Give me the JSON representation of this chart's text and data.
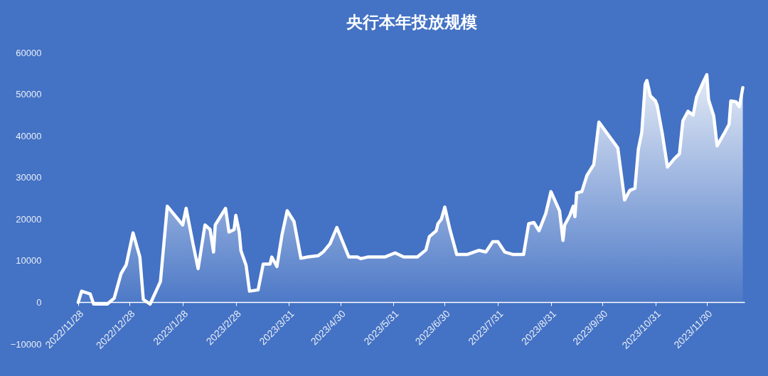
{
  "chart_data": {
    "type": "area",
    "title": "央行本年投放规模",
    "x": [
      "2022-11-28",
      "2022-11-30",
      "2022-12-05",
      "2022-12-07",
      "2022-12-15",
      "2022-12-19",
      "2022-12-23",
      "2022-12-26",
      "2022-12-30",
      "2023-01-03",
      "2023-01-05",
      "2023-01-09",
      "2023-01-13",
      "2023-01-15",
      "2023-01-19",
      "2023-01-28",
      "2023-01-30",
      "2023-02-03",
      "2023-02-06",
      "2023-02-10",
      "2023-02-13",
      "2023-02-15",
      "2023-02-16",
      "2023-02-22",
      "2023-02-24",
      "2023-02-27",
      "2023-02-28",
      "2023-03-02",
      "2023-03-03",
      "2023-03-06",
      "2023-03-08",
      "2023-03-13",
      "2023-03-16",
      "2023-03-20",
      "2023-03-21",
      "2023-03-24",
      "2023-03-27",
      "2023-03-30",
      "2023-04-03",
      "2023-04-07",
      "2023-04-11",
      "2023-04-17",
      "2023-04-20",
      "2023-04-24",
      "2023-04-28",
      "2023-05-05",
      "2023-05-10",
      "2023-05-12",
      "2023-05-16",
      "2023-05-26",
      "2023-06-01",
      "2023-06-06",
      "2023-06-14",
      "2023-06-19",
      "2023-06-21",
      "2023-06-25",
      "2023-06-26",
      "2023-06-28",
      "2023-06-30",
      "2023-07-03",
      "2023-07-07",
      "2023-07-13",
      "2023-07-20",
      "2023-07-24",
      "2023-07-28",
      "2023-07-31",
      "2023-08-04",
      "2023-08-09",
      "2023-08-15",
      "2023-08-18",
      "2023-08-21",
      "2023-08-24",
      "2023-08-28",
      "2023-08-31",
      "2023-09-05",
      "2023-09-07",
      "2023-09-08",
      "2023-09-11",
      "2023-09-13",
      "2023-09-14",
      "2023-09-15",
      "2023-09-18",
      "2023-09-21",
      "2023-09-25",
      "2023-09-28",
      "2023-10-09",
      "2023-10-13",
      "2023-10-16",
      "2023-10-19",
      "2023-10-21",
      "2023-10-23",
      "2023-10-25",
      "2023-10-26",
      "2023-10-28",
      "2023-10-31",
      "2023-11-01",
      "2023-11-04",
      "2023-11-07",
      "2023-11-11",
      "2023-11-14",
      "2023-11-16",
      "2023-11-19",
      "2023-11-22",
      "2023-11-24",
      "2023-11-28",
      "2023-11-30",
      "2023-12-01",
      "2023-12-04",
      "2023-12-06",
      "2023-12-10",
      "2023-12-13",
      "2023-12-14",
      "2023-12-17",
      "2023-12-19",
      "2023-12-21"
    ],
    "series": [
      {
        "color": "#ffffff",
        "values": [
          0,
          2700,
          2000,
          -400,
          -400,
          1000,
          6900,
          9000,
          16700,
          10900,
          700,
          -400,
          3200,
          5000,
          23100,
          18600,
          22600,
          14100,
          8100,
          18600,
          17500,
          12100,
          18600,
          22600,
          16900,
          17500,
          20900,
          16900,
          12400,
          8900,
          2700,
          3000,
          9200,
          9200,
          10900,
          8600,
          16300,
          22000,
          19400,
          10600,
          10900,
          11200,
          12100,
          14100,
          18000,
          10900,
          10900,
          10500,
          10900,
          10900,
          11900,
          10900,
          10900,
          12600,
          15800,
          17200,
          18900,
          20000,
          22900,
          17500,
          11500,
          11500,
          12500,
          12100,
          14600,
          14600,
          12100,
          11500,
          11500,
          18900,
          19200,
          17200,
          21400,
          26600,
          22000,
          14900,
          18600,
          20900,
          23100,
          20600,
          26300,
          26600,
          30500,
          33100,
          43300,
          37100,
          24600,
          26900,
          27400,
          36800,
          40800,
          52400,
          53300,
          49600,
          48400,
          47300,
          40500,
          32500,
          34500,
          35700,
          43600,
          45900,
          45000,
          49300,
          53000,
          54700,
          48700,
          44800,
          37600,
          40500,
          42800,
          48400,
          48200,
          47000,
          51600
        ]
      }
    ],
    "xlim": [
      "2022-11-28",
      "2023-12-22"
    ],
    "xticks": [
      {
        "value": "2022-11-28",
        "label": "2022/11/28"
      },
      {
        "value": "2022-12-28",
        "label": "2022/12/28"
      },
      {
        "value": "2023-01-28",
        "label": "2023/1/28"
      },
      {
        "value": "2023-02-28",
        "label": "2023/2/28"
      },
      {
        "value": "2023-03-31",
        "label": "2023/3/31"
      },
      {
        "value": "2023-04-30",
        "label": "2023/4/30"
      },
      {
        "value": "2023-05-31",
        "label": "2023/5/31"
      },
      {
        "value": "2023-06-30",
        "label": "2023/6/30"
      },
      {
        "value": "2023-07-31",
        "label": "2023/7/31"
      },
      {
        "value": "2023-08-31",
        "label": "2023/8/31"
      },
      {
        "value": "2023-09-30",
        "label": "2023/9/30"
      },
      {
        "value": "2023-10-31",
        "label": "2023/10/31"
      },
      {
        "value": "2023-11-30",
        "label": "2023/11/30"
      }
    ],
    "ylim": [
      -10000,
      60000
    ],
    "yticks": [
      -10000,
      0,
      10000,
      20000,
      30000,
      40000,
      50000,
      60000
    ],
    "grid": false,
    "line_style": "solid"
  }
}
